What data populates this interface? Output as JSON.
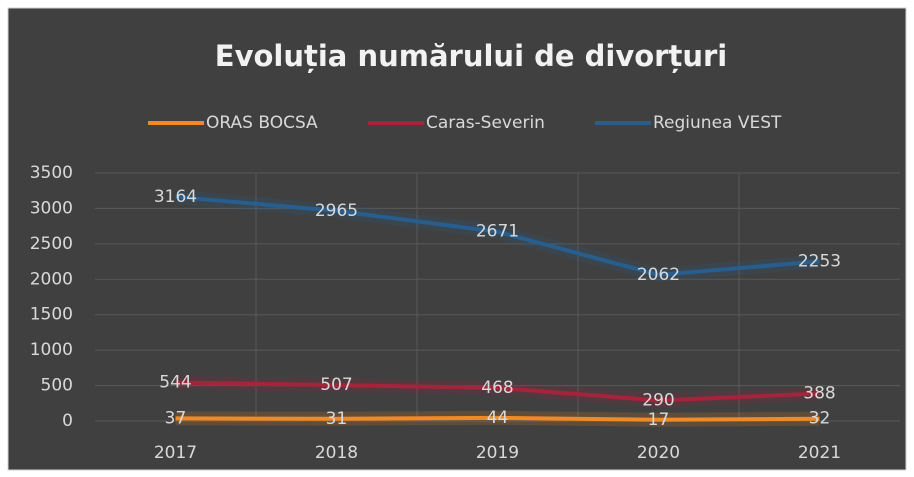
{
  "chart_data": {
    "type": "line",
    "title": "Evoluția numărului de divorțuri",
    "categories": [
      "2017",
      "2018",
      "2019",
      "2020",
      "2021"
    ],
    "series": [
      {
        "name": "ORAS BOCSA",
        "color": "#f08a24",
        "values": [
          37,
          31,
          44,
          17,
          32
        ]
      },
      {
        "name": "Caras-Severin",
        "color": "#a3243b",
        "values": [
          544,
          507,
          468,
          290,
          388
        ]
      },
      {
        "name": "Regiunea VEST",
        "color": "#275e8e",
        "values": [
          3164,
          2965,
          2671,
          2062,
          2253
        ]
      }
    ],
    "ylim": [
      0,
      3500
    ],
    "yticks": [
      0,
      500,
      1000,
      1500,
      2000,
      2500,
      3000,
      3500
    ],
    "grid": true,
    "legend": "top",
    "data_labels": true
  }
}
